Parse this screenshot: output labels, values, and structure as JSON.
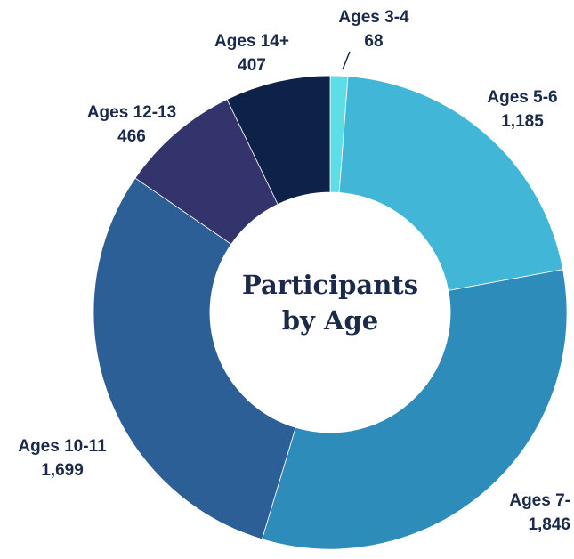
{
  "chart_data": {
    "type": "donut",
    "title": "Participants by Age",
    "categories": [
      "Ages 3-4",
      "Ages 5-6",
      "Ages 7-",
      "Ages 10-11",
      "Ages 12-13",
      "Ages 14+"
    ],
    "values": [
      68,
      1185,
      1846,
      1699,
      466,
      407
    ],
    "value_labels": [
      "68",
      "1,185",
      "1,846",
      "1,699",
      "466",
      "407"
    ],
    "colors": [
      "#5fdde6",
      "#41b6d6",
      "#2e8cba",
      "#2c5f96",
      "#33346b",
      "#0e2149"
    ]
  }
}
